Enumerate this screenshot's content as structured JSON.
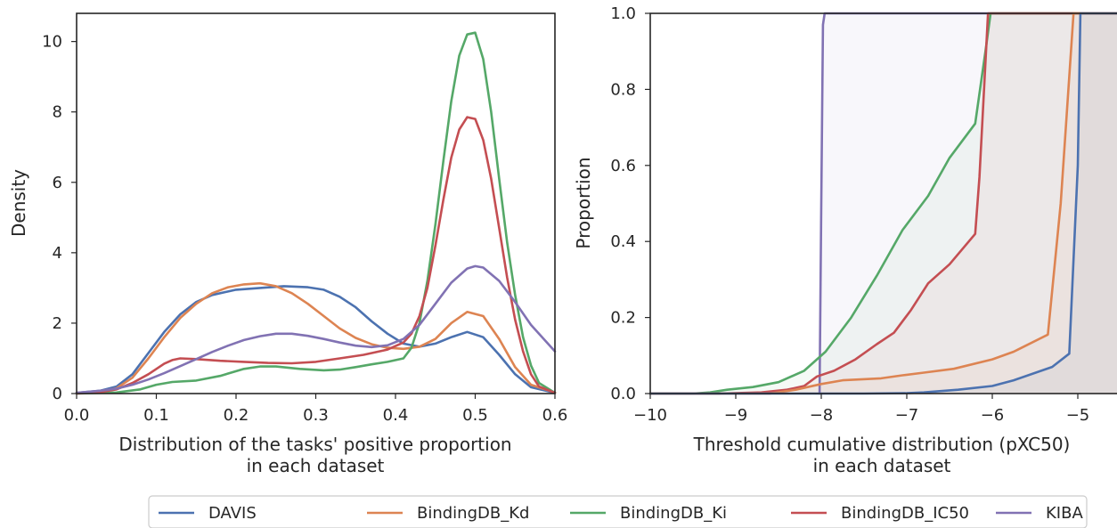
{
  "colors": {
    "DAVIS": "#4c72b0",
    "BindingDB_Kd": "#dd8452",
    "BindingDB_Ki": "#55a868",
    "BindingDB_IC50": "#c44e52",
    "KIBA": "#8172b3"
  },
  "legend": {
    "placement": "bottom-center",
    "entries": [
      "DAVIS",
      "BindingDB_Kd",
      "BindingDB_Ki",
      "BindingDB_IC50",
      "KIBA"
    ]
  },
  "chart_data": [
    {
      "type": "line",
      "subtype": "kde",
      "xlabel_line1": "Distribution of the tasks' positive proportion",
      "xlabel_line2": "in each dataset",
      "ylabel": "Density",
      "xlim": [
        0.0,
        0.6
      ],
      "ylim": [
        0,
        10.8
      ],
      "xticks": [
        "0.0",
        "0.1",
        "0.2",
        "0.3",
        "0.4",
        "0.5",
        "0.6"
      ],
      "yticks": [
        "0",
        "2",
        "4",
        "6",
        "8",
        "10"
      ],
      "grid": false,
      "series": [
        {
          "name": "DAVIS",
          "x": [
            0,
            0.03,
            0.05,
            0.07,
            0.09,
            0.11,
            0.13,
            0.15,
            0.17,
            0.2,
            0.23,
            0.26,
            0.29,
            0.31,
            0.33,
            0.35,
            0.37,
            0.39,
            0.41,
            0.43,
            0.45,
            0.47,
            0.49,
            0.51,
            0.53,
            0.55,
            0.57,
            0.6
          ],
          "y": [
            0.02,
            0.08,
            0.2,
            0.55,
            1.15,
            1.75,
            2.25,
            2.6,
            2.8,
            2.95,
            3.0,
            3.05,
            3.02,
            2.95,
            2.75,
            2.45,
            2.05,
            1.7,
            1.42,
            1.33,
            1.42,
            1.6,
            1.75,
            1.6,
            1.1,
            0.55,
            0.18,
            0.02
          ]
        },
        {
          "name": "BindingDB_Kd",
          "x": [
            0,
            0.03,
            0.05,
            0.07,
            0.09,
            0.11,
            0.13,
            0.15,
            0.17,
            0.19,
            0.21,
            0.23,
            0.25,
            0.27,
            0.29,
            0.31,
            0.33,
            0.35,
            0.37,
            0.39,
            0.41,
            0.43,
            0.45,
            0.47,
            0.49,
            0.51,
            0.53,
            0.55,
            0.57,
            0.6
          ],
          "y": [
            0.02,
            0.06,
            0.15,
            0.45,
            1.0,
            1.6,
            2.15,
            2.55,
            2.85,
            3.02,
            3.1,
            3.13,
            3.05,
            2.85,
            2.55,
            2.2,
            1.85,
            1.58,
            1.4,
            1.3,
            1.27,
            1.33,
            1.55,
            2.0,
            2.32,
            2.2,
            1.55,
            0.75,
            0.25,
            0.03
          ]
        },
        {
          "name": "BindingDB_Ki",
          "x": [
            0,
            0.05,
            0.08,
            0.1,
            0.12,
            0.15,
            0.18,
            0.21,
            0.23,
            0.25,
            0.28,
            0.31,
            0.33,
            0.35,
            0.37,
            0.39,
            0.41,
            0.42,
            0.43,
            0.44,
            0.45,
            0.46,
            0.47,
            0.48,
            0.49,
            0.5,
            0.51,
            0.52,
            0.53,
            0.54,
            0.55,
            0.56,
            0.57,
            0.58,
            0.6
          ],
          "y": [
            0,
            0.03,
            0.12,
            0.25,
            0.33,
            0.37,
            0.5,
            0.7,
            0.77,
            0.77,
            0.7,
            0.66,
            0.68,
            0.75,
            0.83,
            0.9,
            1.0,
            1.3,
            2.0,
            3.2,
            4.8,
            6.6,
            8.3,
            9.6,
            10.2,
            10.25,
            9.5,
            8.0,
            6.1,
            4.3,
            2.8,
            1.6,
            0.8,
            0.3,
            0.02
          ]
        },
        {
          "name": "BindingDB_IC50",
          "x": [
            0,
            0.03,
            0.05,
            0.07,
            0.09,
            0.11,
            0.12,
            0.13,
            0.15,
            0.18,
            0.21,
            0.24,
            0.27,
            0.3,
            0.33,
            0.36,
            0.39,
            0.41,
            0.42,
            0.43,
            0.44,
            0.45,
            0.46,
            0.47,
            0.48,
            0.49,
            0.5,
            0.51,
            0.52,
            0.53,
            0.54,
            0.55,
            0.56,
            0.57,
            0.58,
            0.6
          ],
          "y": [
            0,
            0.04,
            0.12,
            0.3,
            0.55,
            0.85,
            0.95,
            1.0,
            0.98,
            0.93,
            0.9,
            0.87,
            0.86,
            0.9,
            1.0,
            1.1,
            1.25,
            1.45,
            1.7,
            2.2,
            3.0,
            4.2,
            5.5,
            6.7,
            7.5,
            7.85,
            7.8,
            7.2,
            6.1,
            4.7,
            3.3,
            2.1,
            1.2,
            0.55,
            0.2,
            0.02
          ]
        },
        {
          "name": "KIBA",
          "x": [
            0,
            0.03,
            0.05,
            0.07,
            0.09,
            0.11,
            0.13,
            0.15,
            0.17,
            0.19,
            0.21,
            0.23,
            0.25,
            0.27,
            0.29,
            0.31,
            0.33,
            0.35,
            0.37,
            0.39,
            0.41,
            0.43,
            0.45,
            0.47,
            0.49,
            0.5,
            0.51,
            0.53,
            0.55,
            0.57,
            0.6
          ],
          "y": [
            0.02,
            0.08,
            0.14,
            0.25,
            0.4,
            0.58,
            0.78,
            0.98,
            1.18,
            1.36,
            1.52,
            1.63,
            1.7,
            1.7,
            1.64,
            1.55,
            1.45,
            1.36,
            1.32,
            1.37,
            1.55,
            1.95,
            2.55,
            3.15,
            3.55,
            3.62,
            3.58,
            3.2,
            2.6,
            1.95,
            1.2
          ]
        }
      ]
    },
    {
      "type": "area",
      "subtype": "cumulative",
      "xlabel_line1": "Threshold cumulative distribution (pXC50)",
      "xlabel_line2": "in each dataset",
      "ylabel": "Proportion",
      "xlim": [
        -10,
        -4.6
      ],
      "ylim": [
        0,
        1.0
      ],
      "xticks": [
        "−10",
        "−9",
        "−8",
        "−7",
        "−6",
        "−5"
      ],
      "yticks": [
        "0.0",
        "0.2",
        "0.4",
        "0.6",
        "0.8",
        "1.0"
      ],
      "grid": false,
      "series": [
        {
          "name": "KIBA",
          "x": [
            -8.02,
            -8.0,
            -7.98,
            -7.96,
            -7.9
          ],
          "y": [
            0.0,
            0.5,
            0.97,
            1.0,
            1.0
          ]
        },
        {
          "name": "BindingDB_Ki",
          "x": [
            -10,
            -9.5,
            -9.3,
            -9.1,
            -8.8,
            -8.5,
            -8.2,
            -7.95,
            -7.65,
            -7.35,
            -7.05,
            -6.75,
            -6.5,
            -6.2,
            -6.08,
            -6.02
          ],
          "y": [
            0,
            0,
            0.003,
            0.01,
            0.017,
            0.03,
            0.06,
            0.11,
            0.2,
            0.31,
            0.43,
            0.52,
            0.62,
            0.71,
            0.9,
            1.0
          ]
        },
        {
          "name": "BindingDB_IC50",
          "x": [
            -10,
            -9.2,
            -8.7,
            -8.4,
            -8.2,
            -8.05,
            -7.85,
            -7.6,
            -7.35,
            -7.15,
            -6.95,
            -6.75,
            -6.5,
            -6.2,
            -6.15,
            -6.05
          ],
          "y": [
            0,
            0,
            0.003,
            0.01,
            0.02,
            0.045,
            0.06,
            0.09,
            0.13,
            0.16,
            0.22,
            0.29,
            0.34,
            0.42,
            0.57,
            1.0
          ]
        },
        {
          "name": "BindingDB_Kd",
          "x": [
            -10,
            -8.6,
            -8.3,
            -8.0,
            -7.75,
            -7.3,
            -7.05,
            -6.8,
            -6.45,
            -6.0,
            -5.75,
            -5.35,
            -5.2,
            -5.05
          ],
          "y": [
            0,
            0,
            0.01,
            0.025,
            0.035,
            0.04,
            0.048,
            0.055,
            0.065,
            0.09,
            0.11,
            0.155,
            0.5,
            1.0
          ]
        },
        {
          "name": "DAVIS",
          "x": [
            -10,
            -7.5,
            -7.0,
            -6.8,
            -6.4,
            -6.0,
            -5.75,
            -5.3,
            -5.1,
            -5.0,
            -4.97
          ],
          "y": [
            0,
            0,
            0.001,
            0.003,
            0.01,
            0.02,
            0.035,
            0.07,
            0.105,
            0.6,
            1.0
          ]
        }
      ]
    }
  ]
}
